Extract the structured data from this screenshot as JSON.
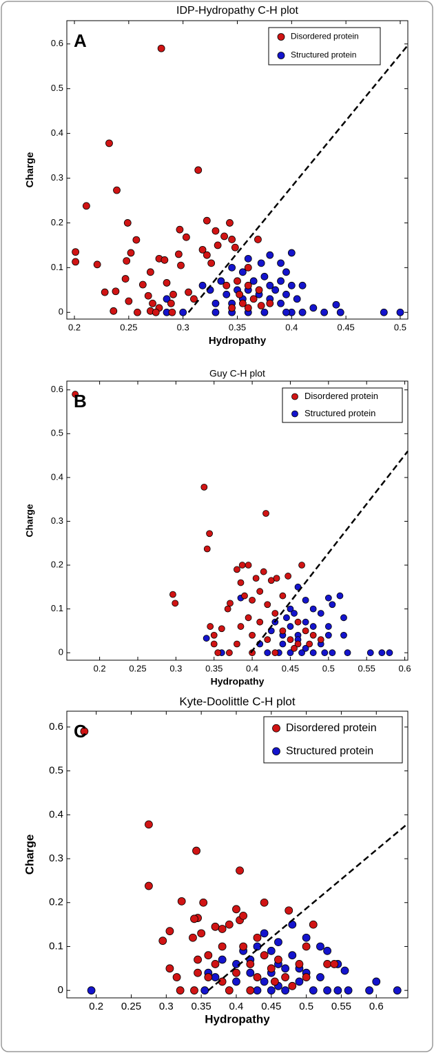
{
  "chart_data": [
    {
      "type": "scatter",
      "title": "IDP-Hydropathy C-H plot",
      "label": "A",
      "xlabel": "Hydropathy",
      "ylabel": "Charge",
      "xlim": [
        0.193,
        0.507
      ],
      "ylim": [
        -0.015,
        0.652
      ],
      "xticks": [
        0.2,
        0.25,
        0.3,
        0.35,
        0.4,
        0.45,
        0.5
      ],
      "yticks": [
        0,
        0.1,
        0.2,
        0.3,
        0.4,
        0.5,
        0.6
      ],
      "legend": "upper right",
      "series": [
        {
          "name": "Disordered protein",
          "color": "#d01414",
          "x": [
            0.28,
            0.232,
            0.314,
            0.239,
            0.211,
            0.201,
            0.201,
            0.221,
            0.249,
            0.248,
            0.257,
            0.252,
            0.247,
            0.228,
            0.238,
            0.25,
            0.263,
            0.268,
            0.27,
            0.272,
            0.278,
            0.283,
            0.285,
            0.289,
            0.297,
            0.296,
            0.298,
            0.303,
            0.305,
            0.31,
            0.318,
            0.322,
            0.322,
            0.326,
            0.33,
            0.332,
            0.338,
            0.343,
            0.345,
            0.348,
            0.36,
            0.369,
            0.35,
            0.36,
            0.37,
            0.365,
            0.355,
            0.345,
            0.38,
            0.372,
            0.36,
            0.352,
            0.34,
            0.278,
            0.291,
            0.29,
            0.275,
            0.258,
            0.236,
            0.27
          ],
          "y": [
            0.59,
            0.378,
            0.318,
            0.273,
            0.238,
            0.135,
            0.113,
            0.107,
            0.2,
            0.115,
            0.162,
            0.133,
            0.075,
            0.045,
            0.047,
            0.025,
            0.062,
            0.037,
            0.003,
            0.02,
            0.12,
            0.117,
            0.066,
            0.02,
            0.185,
            0.13,
            0.105,
            0.168,
            0.045,
            0.03,
            0.14,
            0.205,
            0.128,
            0.11,
            0.182,
            0.15,
            0.17,
            0.2,
            0.163,
            0.145,
            0.1,
            0.163,
            0.07,
            0.06,
            0.05,
            0.03,
            0.02,
            0.01,
            0.02,
            0.015,
            0.01,
            0.04,
            0.06,
            0.01,
            0.04,
            0,
            0,
            0,
            0.003,
            0.09
          ]
        },
        {
          "name": "Structured protein",
          "color": "#1414cc",
          "x": [
            0.5,
            0.485,
            0.441,
            0.445,
            0.4,
            0.38,
            0.372,
            0.36,
            0.345,
            0.39,
            0.395,
            0.41,
            0.405,
            0.42,
            0.43,
            0.41,
            0.4,
            0.39,
            0.385,
            0.375,
            0.365,
            0.355,
            0.35,
            0.34,
            0.335,
            0.33,
            0.33,
            0.345,
            0.36,
            0.375,
            0.38,
            0.395,
            0.4,
            0.325,
            0.318,
            0.3,
            0.285,
            0.285,
            0.37,
            0.355,
            0.39,
            0.345,
            0.36,
            0.38,
            0.395
          ],
          "y": [
            0,
            0,
            0.017,
            0,
            0.133,
            0.128,
            0.11,
            0.12,
            0.1,
            0.11,
            0.09,
            0.06,
            0.03,
            0.01,
            0,
            0,
            0,
            0.02,
            0.05,
            0.08,
            0.07,
            0.09,
            0.05,
            0.04,
            0.07,
            0.02,
            0,
            0,
            0,
            0,
            0.03,
            0.04,
            0.06,
            0.05,
            0.06,
            0,
            0.03,
            0,
            0.04,
            0.03,
            0.07,
            0.02,
            0.05,
            0.06,
            0
          ]
        }
      ],
      "boundary": {
        "x": [
          0.305,
          0.507
        ],
        "y": [
          0,
          0.597
        ]
      }
    },
    {
      "type": "scatter",
      "title": "Guy C-H plot",
      "label": "B",
      "xlabel": "Hydropathy",
      "ylabel": "Charge",
      "xlim": [
        0.157,
        0.604
      ],
      "ylim": [
        -0.017,
        0.62
      ],
      "xticks": [
        0.2,
        0.25,
        0.3,
        0.35,
        0.4,
        0.45,
        0.5,
        0.55,
        0.6
      ],
      "yticks": [
        0,
        0.1,
        0.2,
        0.3,
        0.4,
        0.5,
        0.6
      ],
      "legend": "upper right",
      "series": [
        {
          "name": "Disordered protein",
          "color": "#d01414",
          "x": [
            0.168,
            0.337,
            0.418,
            0.344,
            0.341,
            0.296,
            0.299,
            0.371,
            0.368,
            0.387,
            0.395,
            0.405,
            0.415,
            0.425,
            0.432,
            0.447,
            0.465,
            0.38,
            0.385,
            0.39,
            0.4,
            0.41,
            0.42,
            0.44,
            0.43,
            0.345,
            0.35,
            0.355,
            0.37,
            0.38,
            0.385,
            0.395,
            0.4,
            0.41,
            0.42,
            0.43,
            0.44,
            0.45,
            0.46,
            0.47,
            0.48,
            0.46,
            0.455,
            0.475,
            0.49,
            0.35,
            0.4,
            0.36
          ],
          "y": [
            0.59,
            0.378,
            0.318,
            0.272,
            0.237,
            0.133,
            0.113,
            0.113,
            0.1,
            0.2,
            0.2,
            0.17,
            0.185,
            0.165,
            0.17,
            0.175,
            0.2,
            0.19,
            0.16,
            0.13,
            0.12,
            0.14,
            0.11,
            0.13,
            0.09,
            0.06,
            0.04,
            0,
            0,
            0.02,
            0.06,
            0.08,
            0.04,
            0.07,
            0.03,
            0,
            0.05,
            0.03,
            0.02,
            0.05,
            0.04,
            0.07,
            0.01,
            0.02,
            0.03,
            0.02,
            0,
            0.055
          ]
        },
        {
          "name": "Structured protein",
          "color": "#1414cc",
          "x": [
            0.58,
            0.57,
            0.555,
            0.525,
            0.52,
            0.52,
            0.515,
            0.505,
            0.5,
            0.49,
            0.48,
            0.47,
            0.46,
            0.45,
            0.445,
            0.43,
            0.425,
            0.41,
            0.44,
            0.45,
            0.46,
            0.47,
            0.48,
            0.49,
            0.5,
            0.505,
            0.495,
            0.48,
            0.465,
            0.45,
            0.435,
            0.42,
            0.36,
            0.34,
            0.385,
            0.46,
            0.47,
            0.5,
            0.44,
            0.455
          ],
          "y": [
            0,
            0,
            0,
            0,
            0.04,
            0.08,
            0.13,
            0.11,
            0.125,
            0.09,
            0.1,
            0.12,
            0.15,
            0.1,
            0.08,
            0.07,
            0.05,
            0.02,
            0.02,
            0.06,
            0.04,
            0.07,
            0.06,
            0.02,
            0.04,
            0,
            0,
            0,
            0,
            0,
            0,
            0,
            0,
            0.033,
            0.125,
            0.03,
            0.01,
            0.06,
            0.04,
            0.09
          ]
        }
      ],
      "boundary": {
        "x": [
          0.398,
          0.604
        ],
        "y": [
          0,
          0.46
        ]
      }
    },
    {
      "type": "scatter",
      "title": "Kyte-Doolittle C-H plot",
      "label": "C",
      "xlabel": "Hydropathy",
      "ylabel": "Charge",
      "xlim": [
        0.158,
        0.645
      ],
      "ylim": [
        -0.017,
        0.636
      ],
      "xticks": [
        0.2,
        0.25,
        0.3,
        0.35,
        0.4,
        0.45,
        0.5,
        0.55,
        0.6
      ],
      "yticks": [
        0,
        0.1,
        0.2,
        0.3,
        0.4,
        0.5,
        0.6
      ],
      "legend": "upper right",
      "series": [
        {
          "name": "Disordered protein",
          "color": "#d01414",
          "x": [
            0.183,
            0.275,
            0.275,
            0.343,
            0.405,
            0.305,
            0.295,
            0.322,
            0.353,
            0.345,
            0.34,
            0.338,
            0.35,
            0.37,
            0.38,
            0.39,
            0.4,
            0.405,
            0.41,
            0.44,
            0.475,
            0.51,
            0.43,
            0.41,
            0.38,
            0.36,
            0.345,
            0.305,
            0.315,
            0.32,
            0.34,
            0.345,
            0.36,
            0.37,
            0.38,
            0.4,
            0.42,
            0.43,
            0.44,
            0.45,
            0.46,
            0.47,
            0.48,
            0.49,
            0.5,
            0.53,
            0.54,
            0.5,
            0.42,
            0.39,
            0.455
          ],
          "y": [
            0.59,
            0.378,
            0.238,
            0.318,
            0.273,
            0.135,
            0.113,
            0.203,
            0.2,
            0.165,
            0.163,
            0.12,
            0.13,
            0.145,
            0.14,
            0.15,
            0.185,
            0.16,
            0.17,
            0.2,
            0.182,
            0.15,
            0.12,
            0.1,
            0.1,
            0.08,
            0.07,
            0.05,
            0.03,
            0,
            0,
            0.04,
            0.03,
            0.06,
            0.02,
            0.04,
            0.06,
            0.03,
            0.08,
            0.05,
            0.07,
            0.03,
            0.01,
            0.06,
            0.03,
            0.06,
            0.06,
            0.1,
            0,
            0,
            0.02
          ]
        },
        {
          "name": "Structured protein",
          "color": "#1414cc",
          "x": [
            0.193,
            0.6,
            0.63,
            0.59,
            0.56,
            0.545,
            0.555,
            0.545,
            0.53,
            0.52,
            0.5,
            0.48,
            0.46,
            0.45,
            0.44,
            0.43,
            0.42,
            0.41,
            0.4,
            0.38,
            0.37,
            0.36,
            0.355,
            0.44,
            0.45,
            0.46,
            0.47,
            0.48,
            0.49,
            0.5,
            0.51,
            0.52,
            0.53,
            0.47,
            0.45,
            0.43,
            0.4,
            0.42,
            0.46,
            0.49
          ],
          "y": [
            0,
            0.02,
            0,
            0,
            0,
            0,
            0.045,
            0.06,
            0.09,
            0.1,
            0.12,
            0.15,
            0.11,
            0.09,
            0.13,
            0.1,
            0.07,
            0.09,
            0.06,
            0.07,
            0.03,
            0.04,
            0,
            0.02,
            0.04,
            0.06,
            0.05,
            0.08,
            0.02,
            0.04,
            0,
            0.03,
            0,
            0,
            0,
            0,
            0.02,
            0.04,
            0.01,
            0.05
          ]
        }
      ],
      "boundary": {
        "x": [
          0.36,
          0.645
        ],
        "y": [
          0,
          0.38
        ]
      }
    }
  ]
}
